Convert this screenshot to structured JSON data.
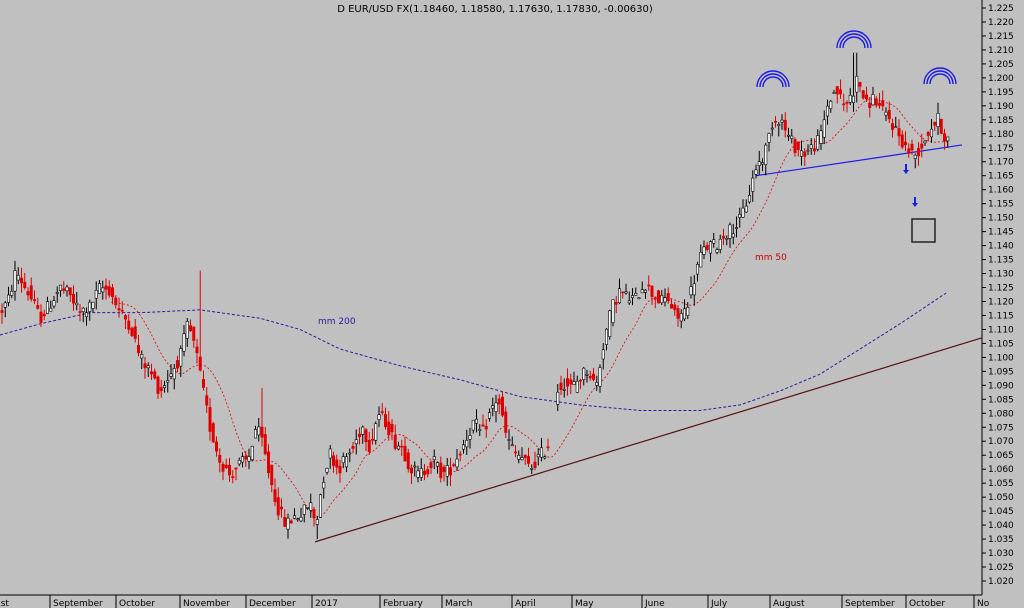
{
  "chart_data": {
    "type": "candlestick",
    "title": "D EUR/USD FX(1.18460, 1.18580, 1.17630, 1.17830, -0.00630)",
    "y_ticks": [
      "1.020",
      "1.025",
      "1.030",
      "1.035",
      "1.040",
      "1.045",
      "1.050",
      "1.055",
      "1.060",
      "1.065",
      "1.070",
      "1.075",
      "1.080",
      "1.085",
      "1.090",
      "1.095",
      "1.100",
      "1.105",
      "1.110",
      "1.115",
      "1.120",
      "1.125",
      "1.130",
      "1.135",
      "1.140",
      "1.145",
      "1.150",
      "1.155",
      "1.160",
      "1.165",
      "1.170",
      "1.175",
      "1.180",
      "1.185",
      "1.190",
      "1.195",
      "1.200",
      "1.205",
      "1.210",
      "1.215",
      "1.220",
      "1.225"
    ],
    "ylim": [
      1.0175,
      1.2275
    ],
    "x_months": [
      "ust",
      "September",
      "October",
      "November",
      "December",
      "2017",
      "February",
      "March",
      "April",
      "May",
      "June",
      "July",
      "August",
      "September",
      "October",
      "No"
    ],
    "annotations": {
      "ma50_label": "mm 50",
      "ma200_label": "mm 200"
    },
    "price_path": [
      [
        0,
        1.116
      ],
      [
        8,
        1.12
      ],
      [
        16,
        1.131
      ],
      [
        22,
        1.127
      ],
      [
        30,
        1.122
      ],
      [
        40,
        1.114
      ],
      [
        50,
        1.119
      ],
      [
        60,
        1.125
      ],
      [
        70,
        1.122
      ],
      [
        80,
        1.116
      ],
      [
        90,
        1.118
      ],
      [
        100,
        1.125
      ],
      [
        110,
        1.124
      ],
      [
        120,
        1.116
      ],
      [
        130,
        1.112
      ],
      [
        140,
        1.1
      ],
      [
        150,
        1.095
      ],
      [
        160,
        1.088
      ],
      [
        170,
        1.094
      ],
      [
        180,
        1.1
      ],
      [
        188,
        1.112
      ],
      [
        196,
        1.102
      ],
      [
        202,
        1.09
      ],
      [
        210,
        1.075
      ],
      [
        220,
        1.063
      ],
      [
        230,
        1.058
      ],
      [
        240,
        1.062
      ],
      [
        248,
        1.063
      ],
      [
        256,
        1.075
      ],
      [
        262,
        1.07
      ],
      [
        270,
        1.057
      ],
      [
        278,
        1.046
      ],
      [
        286,
        1.04
      ],
      [
        294,
        1.043
      ],
      [
        302,
        1.044
      ],
      [
        310,
        1.048
      ],
      [
        316,
        1.04
      ],
      [
        322,
        1.055
      ],
      [
        330,
        1.066
      ],
      [
        338,
        1.06
      ],
      [
        346,
        1.064
      ],
      [
        354,
        1.068
      ],
      [
        362,
        1.076
      ],
      [
        370,
        1.068
      ],
      [
        378,
        1.08
      ],
      [
        386,
        1.077
      ],
      [
        394,
        1.07
      ],
      [
        402,
        1.068
      ],
      [
        410,
        1.061
      ],
      [
        418,
        1.058
      ],
      [
        426,
        1.06
      ],
      [
        434,
        1.063
      ],
      [
        442,
        1.058
      ],
      [
        450,
        1.06
      ],
      [
        458,
        1.065
      ],
      [
        466,
        1.071
      ],
      [
        474,
        1.077
      ],
      [
        482,
        1.072
      ],
      [
        490,
        1.08
      ],
      [
        498,
        1.086
      ],
      [
        506,
        1.072
      ],
      [
        514,
        1.066
      ],
      [
        522,
        1.064
      ],
      [
        530,
        1.06
      ],
      [
        538,
        1.064
      ],
      [
        546,
        1.067
      ],
      [
        552,
        1.073
      ],
      [
        556,
        1.088
      ],
      [
        564,
        1.091
      ],
      [
        572,
        1.089
      ],
      [
        580,
        1.093
      ],
      [
        588,
        1.096
      ],
      [
        596,
        1.089
      ],
      [
        604,
        1.106
      ],
      [
        612,
        1.118
      ],
      [
        620,
        1.124
      ],
      [
        628,
        1.121
      ],
      [
        636,
        1.121
      ],
      [
        644,
        1.127
      ],
      [
        652,
        1.123
      ],
      [
        660,
        1.12
      ],
      [
        668,
        1.121
      ],
      [
        676,
        1.114
      ],
      [
        684,
        1.116
      ],
      [
        692,
        1.125
      ],
      [
        700,
        1.136
      ],
      [
        708,
        1.14
      ],
      [
        716,
        1.14
      ],
      [
        724,
        1.144
      ],
      [
        732,
        1.146
      ],
      [
        740,
        1.149
      ],
      [
        748,
        1.157
      ],
      [
        756,
        1.168
      ],
      [
        764,
        1.172
      ],
      [
        772,
        1.184
      ],
      [
        780,
        1.186
      ],
      [
        788,
        1.179
      ],
      [
        796,
        1.175
      ],
      [
        804,
        1.173
      ],
      [
        812,
        1.175
      ],
      [
        820,
        1.178
      ],
      [
        828,
        1.191
      ],
      [
        836,
        1.196
      ],
      [
        844,
        1.19
      ],
      [
        852,
        1.194
      ],
      [
        858,
        1.2
      ],
      [
        866,
        1.19
      ],
      [
        874,
        1.193
      ],
      [
        882,
        1.188
      ],
      [
        890,
        1.185
      ],
      [
        898,
        1.18
      ],
      [
        906,
        1.175
      ],
      [
        914,
        1.172
      ],
      [
        922,
        1.176
      ],
      [
        930,
        1.182
      ],
      [
        938,
        1.185
      ],
      [
        946,
        1.178
      ]
    ]
  }
}
